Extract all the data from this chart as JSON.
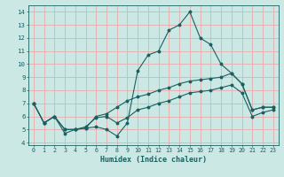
{
  "title": "",
  "xlabel": "Humidex (Indice chaleur)",
  "xlim": [
    -0.5,
    23.5
  ],
  "ylim": [
    3.8,
    14.5
  ],
  "yticks": [
    4,
    5,
    6,
    7,
    8,
    9,
    10,
    11,
    12,
    13,
    14
  ],
  "xticks": [
    0,
    1,
    2,
    3,
    4,
    5,
    6,
    7,
    8,
    9,
    10,
    11,
    12,
    13,
    14,
    15,
    16,
    17,
    18,
    19,
    20,
    21,
    22,
    23
  ],
  "bg_color": "#cce8e4",
  "grid_color": "#e8aaaa",
  "line_color": "#1a6060",
  "line1_y": [
    7.0,
    5.5,
    6.0,
    4.7,
    5.0,
    5.1,
    5.2,
    5.0,
    4.5,
    5.5,
    9.5,
    10.7,
    11.0,
    12.6,
    13.0,
    14.0,
    12.0,
    11.5,
    10.0,
    9.3,
    8.5,
    6.5,
    6.7,
    6.7
  ],
  "line2_y": [
    7.0,
    5.5,
    6.0,
    5.0,
    5.0,
    5.1,
    6.0,
    6.2,
    6.7,
    7.2,
    7.5,
    7.7,
    8.0,
    8.2,
    8.5,
    8.7,
    8.8,
    8.9,
    9.0,
    9.3,
    8.5,
    6.5,
    6.7,
    6.7
  ],
  "line3_y": [
    7.0,
    5.5,
    6.0,
    5.0,
    5.0,
    5.2,
    5.9,
    6.0,
    5.5,
    5.9,
    6.5,
    6.7,
    7.0,
    7.2,
    7.5,
    7.8,
    7.9,
    8.0,
    8.2,
    8.4,
    7.8,
    6.0,
    6.3,
    6.5
  ],
  "xlabel_fontsize": 6.0,
  "tick_fontsize": 4.8
}
